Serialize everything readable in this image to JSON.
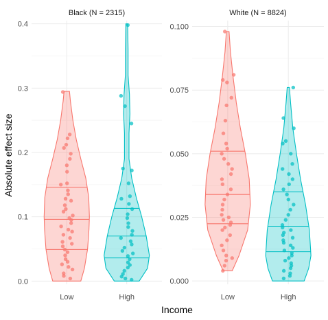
{
  "chart_data": {
    "type": "violin",
    "xlabel": "Income",
    "ylabel": "Absolute effect size",
    "categories": [
      "Low",
      "High"
    ],
    "colors": {
      "Low": "#F8766D",
      "High": "#00BFC4"
    },
    "quantile_lines": [
      0.25,
      0.5,
      0.75
    ],
    "jittered_points": true,
    "grid": true,
    "legend": "none",
    "panels": [
      {
        "title": "Black (N = 2315)",
        "ylim": [
          -0.005,
          0.405
        ],
        "yticks": [
          0.0,
          0.1,
          0.2,
          0.3,
          0.4
        ],
        "ytick_labels": [
          "0.0",
          "0.1",
          "0.2",
          "0.3",
          "0.4"
        ],
        "groups": [
          {
            "category": "Low",
            "quantiles": {
              "q25": 0.049,
              "median": 0.096,
              "q75": 0.146
            },
            "points": [
              0.294,
              0.228,
              0.222,
              0.212,
              0.207,
              0.198,
              0.19,
              0.18,
              0.17,
              0.152,
              0.15,
              0.141,
              0.135,
              0.128,
              0.125,
              0.118,
              0.112,
              0.108,
              0.102,
              0.098,
              0.095,
              0.09,
              0.085,
              0.08,
              0.077,
              0.072,
              0.067,
              0.061,
              0.058,
              0.054,
              0.049,
              0.045,
              0.04,
              0.034,
              0.03,
              0.026,
              0.022,
              0.018,
              0.012,
              0.008,
              0.004
            ],
            "density": [
              [
                0.0,
                0.62
              ],
              [
                0.02,
                0.78
              ],
              [
                0.05,
                0.92
              ],
              [
                0.08,
                0.98
              ],
              [
                0.1,
                1.0
              ],
              [
                0.13,
                0.97
              ],
              [
                0.16,
                0.84
              ],
              [
                0.19,
                0.62
              ],
              [
                0.22,
                0.42
              ],
              [
                0.25,
                0.27
              ],
              [
                0.28,
                0.16
              ],
              [
                0.295,
                0.12
              ]
            ]
          },
          {
            "category": "High",
            "quantiles": {
              "q25": 0.036,
              "median": 0.07,
              "q75": 0.113
            },
            "points": [
              0.398,
              0.288,
              0.272,
              0.245,
              0.175,
              0.172,
              0.152,
              0.132,
              0.128,
              0.12,
              0.112,
              0.104,
              0.098,
              0.09,
              0.084,
              0.078,
              0.072,
              0.067,
              0.062,
              0.057,
              0.052,
              0.047,
              0.043,
              0.039,
              0.034,
              0.029,
              0.025,
              0.021,
              0.016,
              0.011,
              0.007,
              0.004,
              0.002
            ],
            "density": [
              [
                0.0,
                0.55
              ],
              [
                0.02,
                0.92
              ],
              [
                0.04,
                1.0
              ],
              [
                0.07,
                0.86
              ],
              [
                0.1,
                0.66
              ],
              [
                0.13,
                0.42
              ],
              [
                0.16,
                0.22
              ],
              [
                0.19,
                0.1
              ],
              [
                0.23,
                0.1
              ],
              [
                0.26,
                0.14
              ],
              [
                0.29,
                0.12
              ],
              [
                0.32,
                0.06
              ],
              [
                0.36,
                0.06
              ],
              [
                0.4,
                0.04
              ]
            ]
          }
        ]
      },
      {
        "title": "White (N = 8824)",
        "ylim": [
          -0.0013,
          0.1023
        ],
        "yticks": [
          0.0,
          0.025,
          0.05,
          0.075,
          0.1
        ],
        "ytick_labels": [
          "0.000",
          "0.025",
          "0.050",
          "0.075",
          "0.100"
        ],
        "groups": [
          {
            "category": "Low",
            "quantiles": {
              "q25": 0.0225,
              "median": 0.034,
              "q75": 0.051
            },
            "points": [
              0.098,
              0.081,
              0.079,
              0.078,
              0.072,
              0.069,
              0.063,
              0.058,
              0.054,
              0.052,
              0.05,
              0.048,
              0.046,
              0.044,
              0.042,
              0.04,
              0.038,
              0.036,
              0.034,
              0.032,
              0.03,
              0.028,
              0.026,
              0.025,
              0.024,
              0.023,
              0.022,
              0.021,
              0.02,
              0.018,
              0.016,
              0.014,
              0.012,
              0.01,
              0.009,
              0.008,
              0.006,
              0.004
            ],
            "density": [
              [
                0.004,
                0.2
              ],
              [
                0.01,
                0.5
              ],
              [
                0.02,
                0.88
              ],
              [
                0.03,
                1.0
              ],
              [
                0.04,
                0.95
              ],
              [
                0.05,
                0.78
              ],
              [
                0.06,
                0.56
              ],
              [
                0.07,
                0.38
              ],
              [
                0.08,
                0.24
              ],
              [
                0.09,
                0.12
              ],
              [
                0.098,
                0.06
              ]
            ]
          },
          {
            "category": "High",
            "quantiles": {
              "q25": 0.0115,
              "median": 0.0215,
              "q75": 0.035
            },
            "points": [
              0.076,
              0.064,
              0.06,
              0.055,
              0.054,
              0.05,
              0.046,
              0.044,
              0.042,
              0.04,
              0.038,
              0.036,
              0.034,
              0.032,
              0.03,
              0.028,
              0.026,
              0.024,
              0.022,
              0.021,
              0.02,
              0.019,
              0.018,
              0.017,
              0.016,
              0.015,
              0.014,
              0.013,
              0.012,
              0.011,
              0.01,
              0.009,
              0.008,
              0.007,
              0.006,
              0.005,
              0.004,
              0.003,
              0.002,
              0.001
            ],
            "density": [
              [
                0.0,
                0.7
              ],
              [
                0.005,
                0.9
              ],
              [
                0.01,
                1.0
              ],
              [
                0.02,
                0.93
              ],
              [
                0.03,
                0.76
              ],
              [
                0.04,
                0.54
              ],
              [
                0.05,
                0.36
              ],
              [
                0.06,
                0.2
              ],
              [
                0.07,
                0.1
              ],
              [
                0.076,
                0.05
              ]
            ]
          }
        ]
      }
    ]
  }
}
